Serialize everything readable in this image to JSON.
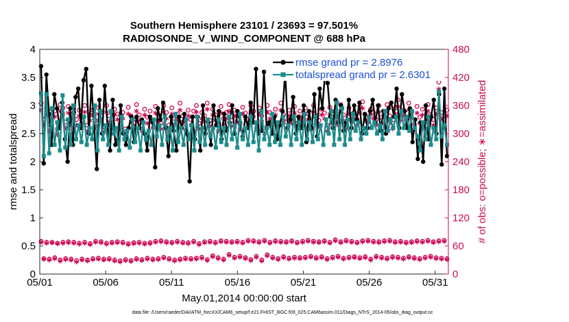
{
  "chart_data": {
    "type": "line",
    "title": "Southern Hemisphere 23101 / 23693 = 97.501%",
    "subtitle": "RADIOSONDE_V_WIND_COMPONENT @ 688 hPa",
    "xlabel": "May.01,2014 00:00:00 start",
    "ylabel": "rmse and totalspread",
    "y2label": "# of obs: o=possible; ∗=assimilated",
    "footer": "data file: /Users/raeder/DAI/ATM_forcXX/CAM6_setup/f.e21.FHIST_BGC.f09_025.CAM6assim.011/Diags_NTrS_2014-05/obs_diag_output.nc",
    "xlim": [
      1,
      32
    ],
    "ylim": [
      0,
      4
    ],
    "y2lim": [
      0,
      480
    ],
    "xticks": [
      1,
      6,
      11,
      16,
      21,
      26,
      31
    ],
    "xtick_labels": [
      "05/01",
      "05/06",
      "05/11",
      "05/16",
      "05/21",
      "05/26",
      "05/31"
    ],
    "yticks": [
      0,
      0.5,
      1,
      1.5,
      2,
      2.5,
      3,
      3.5,
      4
    ],
    "ytick_labels": [
      "0",
      "0.5",
      "1",
      "1.5",
      "2",
      "2.5",
      "3",
      "3.5",
      "4"
    ],
    "y2ticks": [
      0,
      60,
      120,
      180,
      240,
      300,
      360,
      420,
      480
    ],
    "y2tick_labels": [
      "0",
      "60",
      "120",
      "180",
      "240",
      "300",
      "360",
      "420",
      "480"
    ],
    "legend_position": "top-right",
    "colors": {
      "rmse": "#000000",
      "spread": "#1e8c8c",
      "obs": "#cc0a55"
    },
    "series": [
      {
        "name": "rmse grand pr = 2.8976",
        "values": [
          3.7,
          1.97,
          3.55,
          2.85,
          2.3,
          3.2,
          2.95,
          2.6,
          3.05,
          2.4,
          2.0,
          2.95,
          2.3,
          3.15,
          3.3,
          2.6,
          3.45,
          3.65,
          2.5,
          3.35,
          2.6,
          1.87,
          3.1,
          2.5,
          3.35,
          2.65,
          2.2,
          3.1,
          2.3,
          2.4,
          3.0,
          2.5,
          2.3,
          2.6,
          2.8,
          2.35,
          2.8,
          2.6,
          2.75,
          2.5,
          2.2,
          2.8,
          2.7,
          1.9,
          2.95,
          2.75,
          3.05,
          2.6,
          2.1,
          2.8,
          2.55,
          2.2,
          2.8,
          2.6,
          2.85,
          2.5,
          1.65,
          2.8,
          2.4,
          2.8,
          2.2,
          3.0,
          2.5,
          2.7,
          2.3,
          3.0,
          2.65,
          2.9,
          2.4,
          2.85,
          2.55,
          2.7,
          3.0,
          2.5,
          2.9,
          2.7,
          2.45,
          2.8,
          2.6,
          3.05,
          2.7,
          3.65,
          2.5,
          2.55,
          3.6,
          2.6,
          2.7,
          2.5,
          2.8,
          2.4,
          2.65,
          2.9,
          3.6,
          2.6,
          2.75,
          3.15,
          2.5,
          2.8,
          2.6,
          3.0,
          2.35,
          2.9,
          2.6,
          3.2,
          2.45,
          3.3,
          2.95,
          3.55,
          3.4,
          2.8,
          2.6,
          3.1,
          2.7,
          3.0,
          2.55,
          2.7,
          3.1,
          2.6,
          3.0,
          2.75,
          3.05,
          2.5,
          2.85,
          2.6,
          2.9,
          3.1,
          2.7,
          3.0,
          2.55,
          2.9,
          2.5,
          2.95,
          3.05,
          2.8,
          3.3,
          2.6,
          3.2,
          2.9,
          2.6,
          2.95,
          2.35,
          2.75,
          2.05,
          2.7,
          2.0,
          3.0,
          2.4,
          2.8,
          3.1,
          2.5,
          3.2,
          1.95,
          3.3,
          2.1
        ]
      },
      {
        "name": "totalspread grand pr = 2.6301",
        "values": [
          3.22,
          2.1,
          3.2,
          2.15,
          2.95,
          2.3,
          2.7,
          2.2,
          3.18,
          2.25,
          2.75,
          2.3,
          3.0,
          2.4,
          2.65,
          2.35,
          2.8,
          2.3,
          2.6,
          2.4,
          3.0,
          2.2,
          2.9,
          2.4,
          2.65,
          2.3,
          2.9,
          2.5,
          2.6,
          2.2,
          2.8,
          2.4,
          2.55,
          2.25,
          2.75,
          2.35,
          2.6,
          2.2,
          2.7,
          2.4,
          2.55,
          2.3,
          2.75,
          2.45,
          2.65,
          2.3,
          2.8,
          2.4,
          2.6,
          2.2,
          2.85,
          2.35,
          2.6,
          2.3,
          2.75,
          2.4,
          2.65,
          2.2,
          2.8,
          2.35,
          2.6,
          2.3,
          2.75,
          2.45,
          2.6,
          2.25,
          2.75,
          2.35,
          2.6,
          2.3,
          2.8,
          2.4,
          2.65,
          2.25,
          2.85,
          2.4,
          2.6,
          2.3,
          2.8,
          2.35,
          2.7,
          2.2,
          2.9,
          2.4,
          2.6,
          2.3,
          2.85,
          2.35,
          2.7,
          2.3,
          2.8,
          2.45,
          2.65,
          2.3,
          2.8,
          2.4,
          2.7,
          2.3,
          2.85,
          2.4,
          2.7,
          2.35,
          2.8,
          2.4,
          2.65,
          2.3,
          2.75,
          2.5,
          2.9,
          2.3,
          3.05,
          2.4,
          2.95,
          2.3,
          2.75,
          2.4,
          2.85,
          2.55,
          2.7,
          2.4,
          2.6,
          2.5,
          2.8,
          2.6,
          2.7,
          2.5,
          2.65,
          2.4,
          2.9,
          2.55,
          2.75,
          2.6,
          2.8,
          2.5,
          2.9,
          2.6,
          2.8,
          2.55,
          2.9,
          2.6,
          2.45,
          2.2,
          2.7,
          2.4,
          2.8,
          2.3,
          2.6,
          2.4,
          3.25,
          2.45,
          2.65,
          2.3
        ]
      }
    ],
    "obs_possible": [
      70,
      33,
      68,
      32,
      68,
      35,
      66,
      30,
      68,
      33,
      69,
      32,
      68,
      29,
      66,
      32,
      68,
      30,
      65,
      33,
      70,
      34,
      69,
      32,
      66,
      33,
      68,
      30,
      69,
      28,
      68,
      31,
      65,
      29,
      67,
      33,
      68,
      31,
      66,
      34,
      67,
      32,
      70,
      33,
      71,
      36,
      69,
      33,
      68,
      30,
      70,
      32,
      68,
      34,
      67,
      33,
      70,
      34,
      65,
      36,
      69,
      31,
      70,
      39,
      68,
      35,
      71,
      32,
      70,
      42,
      69,
      36,
      70,
      38,
      68,
      35,
      72,
      31,
      71,
      38,
      69,
      30,
      72,
      41,
      68,
      36,
      71,
      33,
      70,
      37,
      69,
      34,
      71,
      36,
      68,
      35,
      70,
      36,
      72,
      38,
      70,
      35,
      69,
      37,
      71,
      33,
      68,
      36,
      73,
      38,
      69,
      34,
      72,
      36,
      70,
      37,
      68,
      35,
      71,
      37,
      72,
      32,
      70,
      38,
      69,
      36,
      71,
      34,
      72,
      37,
      69,
      36,
      70,
      34,
      68,
      37,
      69,
      35,
      71,
      33,
      70,
      36,
      72,
      38,
      69,
      35,
      71,
      34,
      72,
      33
    ],
    "obs_assimilated": [
      68,
      32,
      66,
      30,
      67,
      33,
      65,
      28,
      66,
      31,
      67,
      30,
      66,
      26,
      64,
      30,
      66,
      28,
      63,
      31,
      68,
      32,
      67,
      30,
      64,
      31,
      66,
      28,
      67,
      26,
      66,
      29,
      63,
      27,
      65,
      31,
      66,
      29,
      64,
      32,
      65,
      30,
      68,
      31,
      69,
      34,
      67,
      31,
      66,
      28,
      68,
      30,
      66,
      32,
      65,
      31,
      68,
      32,
      63,
      34,
      67,
      29,
      68,
      37,
      66,
      33,
      69,
      30,
      68,
      40,
      67,
      34,
      68,
      36,
      66,
      33,
      70,
      29,
      69,
      36,
      67,
      28,
      70,
      39,
      66,
      34,
      69,
      31,
      68,
      35,
      67,
      32,
      69,
      34,
      66,
      33,
      68,
      34,
      70,
      36,
      68,
      33,
      67,
      35,
      69,
      31,
      66,
      34,
      71,
      36,
      67,
      32,
      70,
      34,
      68,
      35,
      66,
      33,
      69,
      35,
      70,
      30,
      68,
      36,
      67,
      34,
      69,
      32,
      70,
      35,
      67,
      34,
      68,
      32,
      66,
      35,
      67,
      33,
      69,
      31,
      68,
      34,
      70,
      36,
      67,
      33,
      69,
      32,
      70,
      31
    ],
    "obs_possible_top": [
      365,
      330,
      355,
      320,
      352,
      348,
      310,
      362,
      355,
      325,
      358,
      312,
      345,
      330,
      350,
      335,
      360,
      318,
      340,
      350,
      328,
      355,
      345,
      315,
      360,
      338,
      325,
      352,
      342,
      320,
      345,
      310,
      356,
      338,
      330,
      362,
      340,
      318,
      352,
      335,
      348,
      325,
      358,
      340,
      322,
      360,
      345,
      318,
      355,
      332,
      342,
      365,
      338,
      320,
      350,
      330,
      348,
      360,
      322,
      345,
      338,
      365,
      328,
      352,
      340,
      318,
      358,
      332,
      345,
      362,
      328,
      350,
      338,
      320,
      356,
      344,
      330,
      360,
      348,
      322,
      355,
      338,
      312,
      360,
      345,
      330,
      352,
      318,
      365,
      340,
      325,
      350,
      335,
      358,
      322,
      348,
      330,
      355,
      342,
      320,
      360,
      338,
      328,
      352,
      344,
      318,
      356,
      335,
      348,
      330,
      362,
      340,
      322,
      355,
      338,
      345,
      330,
      358,
      368,
      340,
      325,
      352,
      345,
      330,
      360,
      335,
      348,
      362,
      338,
      322,
      355,
      372,
      340,
      350,
      330,
      365,
      345,
      320,
      358,
      335,
      352,
      325,
      362,
      340,
      330,
      355,
      410,
      345,
      330,
      350
    ],
    "obs_assimilated_top": [
      350,
      318,
      340,
      305,
      340,
      336,
      298,
      348,
      342,
      312,
      344,
      300,
      332,
      318,
      338,
      322,
      346,
      305,
      328,
      338,
      316,
      342,
      332,
      302,
      346,
      325,
      312,
      340,
      330,
      308,
      332,
      298,
      342,
      325,
      318,
      348,
      328,
      305,
      340,
      322,
      335,
      312,
      344,
      327,
      310,
      346,
      332,
      305,
      342,
      320,
      330,
      350,
      326,
      308,
      338,
      318,
      336,
      346,
      310,
      332,
      326,
      352,
      316,
      340,
      328,
      305,
      344,
      320,
      332,
      348,
      316,
      338,
      326,
      308,
      342,
      332,
      318,
      346,
      336,
      310,
      342,
      326,
      300,
      346,
      332,
      318,
      340,
      305,
      350,
      328,
      312,
      338,
      322,
      344,
      310,
      336,
      318,
      342,
      330,
      308,
      346,
      326,
      316,
      340,
      332,
      305,
      342,
      322,
      336,
      318,
      348,
      328,
      310,
      342,
      326,
      332,
      318,
      344,
      354,
      328,
      312,
      340,
      332,
      318,
      346,
      322,
      336,
      348,
      326,
      310,
      342,
      358,
      328,
      338,
      318,
      350,
      332,
      308,
      344,
      322,
      340,
      312,
      348,
      328,
      318,
      342,
      395,
      332,
      318,
      338
    ]
  }
}
